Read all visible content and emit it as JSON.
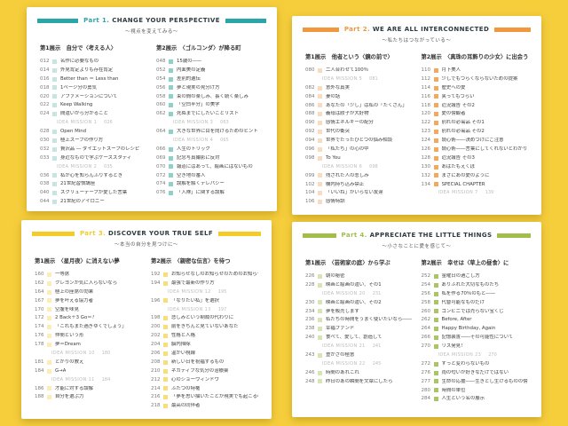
{
  "background_color": "#F6CE3C",
  "pages": [
    {
      "part_label": "Part 1.",
      "title": "CHANGE YOUR PERSPECTIVE",
      "subtitle": "～視点を変えてみる～",
      "accent": "#2AA6AA",
      "columns": [
        {
          "header": "第1展示　自分で〈考える人〉",
          "square": "#C7E5E0",
          "rows": [
            {
              "num": "012",
              "label": "名作に必要なもの"
            },
            {
              "num": "014",
              "label": "外見肯定よりも存在肯定"
            },
            {
              "num": "016",
              "label": "Better than ＝ Less than"
            },
            {
              "num": "018",
              "label": "1ページ分の勇気"
            },
            {
              "num": "020",
              "label": "アファメーションについて"
            },
            {
              "num": "022",
              "label": "Keep Walking"
            },
            {
              "num": "024",
              "label": "間違いから分かること"
            },
            {
              "mission": "IDEA MISSION 1",
              "page": "026"
            },
            {
              "num": "028",
              "label": "Open Mind"
            },
            {
              "num": "030",
              "label": "極上スープの作り方"
            },
            {
              "num": "032",
              "label": "贅沢品 ― ダイエットスープのレシピ"
            },
            {
              "num": "033",
              "label": "身近なもので学ぶケーススタディ"
            },
            {
              "mission": "IDEA MISSION 2",
              "page": "035"
            },
            {
              "num": "036",
              "label": "私が心を知らんふりするとき"
            },
            {
              "num": "038",
              "label": "21世紀習慣講座"
            },
            {
              "num": "040",
              "label": "スクリューテープが愛した言葉"
            },
            {
              "num": "044",
              "label": "21世紀のアイロニー"
            }
          ]
        },
        {
          "header": "第2展示　〈ゴルコンダ〉が降る町",
          "square": "#8FD1C9",
          "rows": [
            {
              "num": "048",
              "label": "15歳の――"
            },
            {
              "num": "052",
              "label": "内面美の定義"
            },
            {
              "num": "054",
              "label": "差別的遺伝"
            },
            {
              "num": "056",
              "label": "夢と現実の見分け方"
            },
            {
              "num": "058",
              "label": "束の間の楽しみ、長く続く楽しみ"
            },
            {
              "num": "060",
              "label": "「空白半分」の美学"
            },
            {
              "num": "062",
              "label": "死ぬまでにしたいことリスト"
            },
            {
              "mission": "IDEA MISSION 3",
              "page": "063"
            },
            {
              "num": "064",
              "label": "大きな世界に目を向けるためのヒント"
            },
            {
              "mission": "IDEA MISSION 4",
              "page": "065"
            },
            {
              "num": "066",
              "label": "人生のトリック"
            },
            {
              "num": "069",
              "label": "記念写真撮影に反対"
            },
            {
              "num": "070",
              "label": "報道にはあって、絵画にはないもの"
            },
            {
              "num": "072",
              "label": "空き地の番人"
            },
            {
              "num": "074",
              "label": "誤解を解くテレパシー"
            },
            {
              "num": "076",
              "label": "「入隊」に関する誤解"
            }
          ]
        }
      ]
    },
    {
      "part_label": "Part 2.",
      "title": "WE ARE ALL INTERCONNECTED",
      "subtitle": "～私たちはつながっている～",
      "accent": "#F0983B",
      "columns": [
        {
          "header": "第1展示　他者という〈鏡の前で〉",
          "square": "#F8DCC0",
          "rows": [
            {
              "num": "080",
              "label": "二人合わせて100％"
            },
            {
              "mission": "IDEA MISSION 5",
              "page": "081"
            },
            {
              "num": "082",
              "label": "意外な真実"
            },
            {
              "num": "084",
              "label": "妻の話"
            },
            {
              "num": "086",
              "label": "あなたの「少し」は私の「たくさん」"
            },
            {
              "num": "088",
              "label": "義母は餃子が大好物"
            },
            {
              "num": "090",
              "label": "感情エネルギーの配分"
            },
            {
              "num": "092",
              "label": "世代の衝突"
            },
            {
              "num": "094",
              "label": "世界でたったひとつの悩み相談"
            },
            {
              "num": "096",
              "label": "「私たち」の心の中"
            },
            {
              "num": "098",
              "label": "To You"
            },
            {
              "mission": "IDEA MISSION 6",
              "page": "098"
            },
            {
              "num": "099",
              "label": "残された人の悲しみ"
            },
            {
              "num": "102",
              "label": "機内持ち込み禁止"
            },
            {
              "num": "104",
              "label": "「いいね」がいらない友達"
            },
            {
              "num": "106",
              "label": "感情特訓"
            }
          ]
        },
        {
          "header": "第2展示　〈真珠の耳飾りの少女〉に出会う",
          "square": "#F2A95C",
          "rows": [
            {
              "num": "110",
              "label": "月下美人"
            },
            {
              "num": "112",
              "label": "少しでもつらくならないための提案"
            },
            {
              "num": "114",
              "label": "歴史への愛"
            },
            {
              "num": "116",
              "label": "笑ってもつらい"
            },
            {
              "num": "118",
              "label": "近況報告 その2"
            },
            {
              "num": "120",
              "label": "愛の傍観者"
            },
            {
              "num": "122",
              "label": "別れの必需品 その1"
            },
            {
              "num": "123",
              "label": "別れの必需品 その2"
            },
            {
              "num": "124",
              "label": "読心術――決めつけにご注意"
            },
            {
              "num": "126",
              "label": "読心術――言葉にしてくれないとわかりません"
            },
            {
              "num": "128",
              "label": "近況報告 その3"
            },
            {
              "num": "130",
              "label": "あばたもえくぼ"
            },
            {
              "num": "132",
              "label": "まさにあの愛のように"
            },
            {
              "num": "134",
              "label": "SPECIAL CHAPTER"
            },
            {
              "mission": "IDEA MISSION 7",
              "page": "139"
            }
          ]
        }
      ]
    },
    {
      "part_label": "Part 3.",
      "title": "DISCOVER YOUR TRUE SELF",
      "subtitle": "～本当の自分を見つけに～",
      "accent": "#F4CB27",
      "columns": [
        {
          "header": "第1展示　〈星月夜〉に消えない夢",
          "square": "#FBEDB4",
          "rows": [
            {
              "num": "160",
              "label": "一等席"
            },
            {
              "num": "162",
              "label": "クレヨンが気に入らないなら"
            },
            {
              "num": "164",
              "label": "極上の座席の効果"
            },
            {
              "num": "167",
              "label": "夢を叶える協力者"
            },
            {
              "num": "170",
              "label": "空腹を味見"
            },
            {
              "num": "172",
              "label": "2 Back＋3 Go＝？"
            },
            {
              "num": "174",
              "label": "「これもまた過ぎゆくでしょう」"
            },
            {
              "num": "176",
              "label": "仲間という形"
            },
            {
              "num": "178",
              "label": "夢＝Dream"
            },
            {
              "mission": "IDEA MISSION 10",
              "page": "180"
            },
            {
              "num": "181",
              "label": "とがりの教え"
            },
            {
              "num": "184",
              "label": "G→A"
            },
            {
              "mission": "IDEA MISSION 11",
              "page": "184"
            },
            {
              "num": "186",
              "label": "才能に対する誤解"
            },
            {
              "num": "188",
              "label": "自分を選ぶ力"
            }
          ]
        },
        {
          "header": "第2展示　〈親密な伝言〉を待つ",
          "square": "#F8DE7A",
          "rows": [
            {
              "num": "192",
              "label": "お知らせなしのお知らせのためのお知らせ"
            },
            {
              "num": "194",
              "label": "最強で最新の作り方"
            },
            {
              "mission": "IDEA MISSION 12",
              "page": "195"
            },
            {
              "num": "196",
              "label": "「なりたい私」を選択"
            },
            {
              "mission": "IDEA MISSION 13",
              "page": "197"
            },
            {
              "num": "198",
              "label": "悲しみという制裁の代わりに"
            },
            {
              "num": "200",
              "label": "前をきちんと見ていないあなた"
            },
            {
              "num": "202",
              "label": "性格と人格"
            },
            {
              "num": "204",
              "label": "脳内掃除"
            },
            {
              "num": "206",
              "label": "温かい視線"
            },
            {
              "num": "208",
              "label": "新しい日を祝福するもの"
            },
            {
              "num": "210",
              "label": "ネガティブな気分の治療薬"
            },
            {
              "num": "212",
              "label": "心のショーウィンドウ"
            },
            {
              "num": "214",
              "label": "ふたつの特権"
            },
            {
              "num": "216",
              "label": "「夢を思い描いたことが現実でも起こるのです」"
            },
            {
              "num": "218",
              "label": "最高の同伴者"
            }
          ]
        }
      ]
    },
    {
      "part_label": "Part 4.",
      "title": "APPRECIATE THE LITTLE THINGS",
      "subtitle": "～小さなことに愛を感じて～",
      "accent": "#A2BE49",
      "columns": [
        {
          "header": "第1展示　〈芸術家の庭〉から学ぶ",
          "square": "#D9E4B4",
          "rows": [
            {
              "num": "226",
              "label": "朝の秘密"
            },
            {
              "num": "228",
              "label": "映画と絵画の違い、その1"
            },
            {
              "mission": "IDEA MISSION 20",
              "page": "231"
            },
            {
              "num": "230",
              "label": "映画と絵画の違い、その2"
            },
            {
              "num": "234",
              "label": "夢を販売します"
            },
            {
              "num": "236",
              "label": "私たちの時間をうまく使いたいなら――"
            },
            {
              "num": "238",
              "label": "幸福ファンド"
            },
            {
              "num": "240",
              "label": "食べて、愛して、創造して"
            },
            {
              "mission": "IDEA MISSION 21",
              "page": "241"
            },
            {
              "num": "243",
              "label": "豊かさの極意"
            },
            {
              "mission": "IDEA MISSION 22",
              "page": "245"
            },
            {
              "num": "246",
              "label": "時間のあれこれ"
            },
            {
              "num": "248",
              "label": "昨日のあの瞬間を文章にしたら"
            }
          ]
        },
        {
          "header": "第2展示　幸せは〈草上の昼食〉に",
          "square": "#A9C566",
          "rows": [
            {
              "num": "252",
              "label": "金曜日の過ごし方"
            },
            {
              "num": "254",
              "label": "ありふれた大切なものたち"
            },
            {
              "num": "256",
              "label": "私を作る70％のもと――"
            },
            {
              "num": "258",
              "label": "代替可能なものだけ"
            },
            {
              "num": "260",
              "label": "コンビニでは売らない宝くじ"
            },
            {
              "num": "262",
              "label": "Before, After"
            },
            {
              "num": "264",
              "label": "Happy Birthday, Again"
            },
            {
              "num": "266",
              "label": "記憶装置――その可能性について"
            },
            {
              "num": "270",
              "label": "リス発見！"
            },
            {
              "mission": "IDEA MISSION 23",
              "page": "270"
            },
            {
              "num": "272",
              "label": "ずっと変わらないもの"
            },
            {
              "num": "276",
              "label": "雨の匂いが好きなだけではない"
            },
            {
              "num": "277",
              "label": "生命の応援――生きとし生けるものの傍で"
            },
            {
              "num": "280",
              "label": "時間の単位"
            },
            {
              "num": "284",
              "label": "人生という名の展示"
            }
          ]
        }
      ]
    }
  ]
}
